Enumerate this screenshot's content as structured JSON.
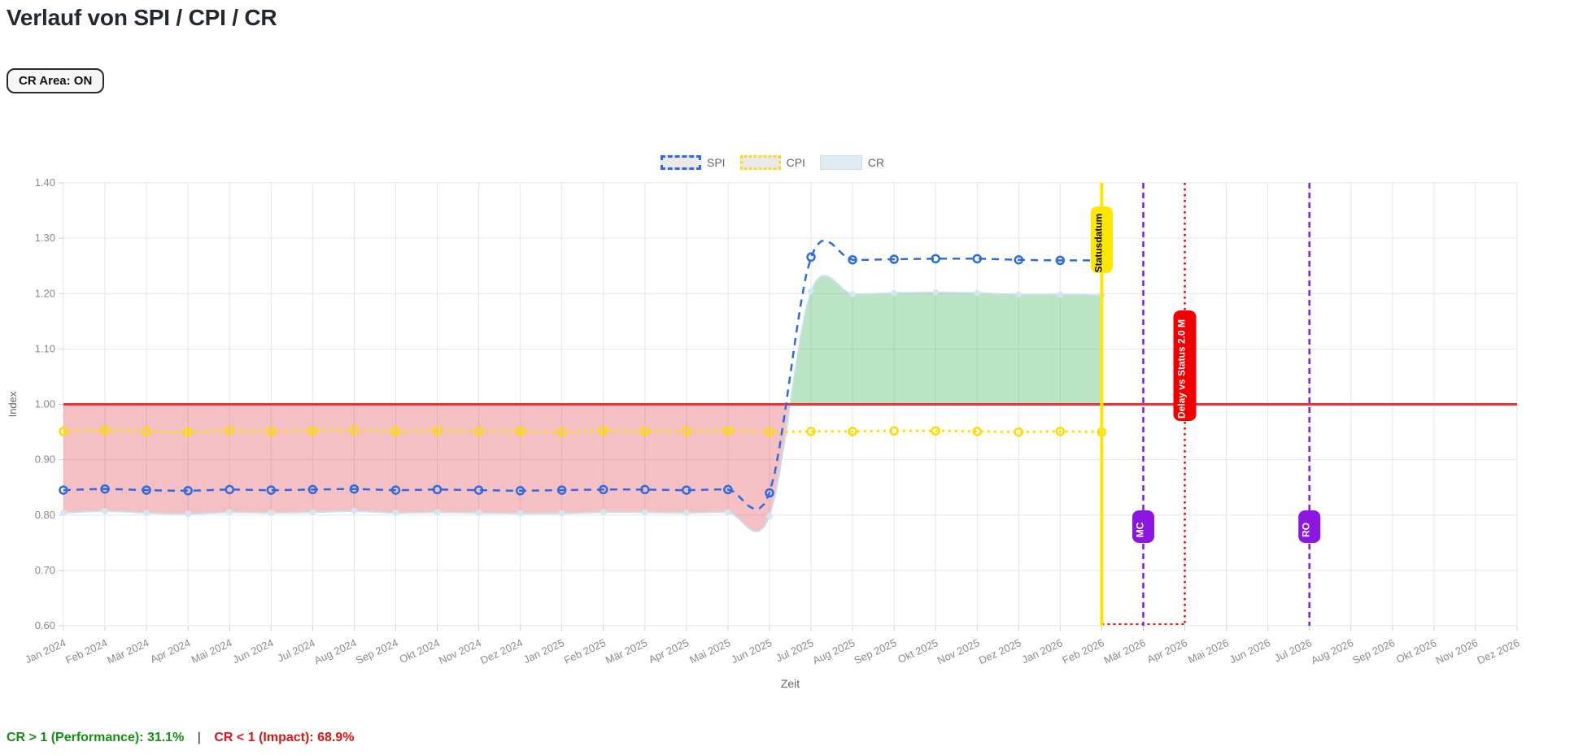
{
  "page": {
    "title": "Verlauf von SPI / CPI / CR",
    "cr_area_button": "CR Area: ON"
  },
  "legend": {
    "items": [
      {
        "label": "SPI"
      },
      {
        "label": "CPI"
      },
      {
        "label": "CR"
      }
    ]
  },
  "footer": {
    "performance": "CR > 1 (Performance): 31.1%",
    "separator": "|",
    "impact": "CR < 1 (Impact): 68.9%"
  },
  "chart_data": {
    "type": "line",
    "title": "Verlauf von SPI / CPI / CR",
    "xlabel": "Zeit",
    "ylabel": "Index",
    "ylim": [
      0.6,
      1.4
    ],
    "ytick_step": 0.1,
    "grid": true,
    "legend_position": "top",
    "x": [
      "Jan 2024",
      "Feb 2024",
      "Mär 2024",
      "Apr 2024",
      "Mai 2024",
      "Jun 2024",
      "Jul 2024",
      "Aug 2024",
      "Sep 2024",
      "Okt 2024",
      "Nov 2024",
      "Dez 2024",
      "Jan 2025",
      "Feb 2025",
      "Mär 2025",
      "Apr 2025",
      "Mai 2025",
      "Jun 2025",
      "Jul 2025",
      "Aug 2025",
      "Sep 2025",
      "Okt 2025",
      "Nov 2025",
      "Dez 2025",
      "Jan 2026",
      "Feb 2026",
      "Mär 2026",
      "Apr 2026",
      "Mai 2026",
      "Jun 2026",
      "Jul 2026",
      "Aug 2026",
      "Sep 2026",
      "Okt 2026",
      "Nov 2026",
      "Dez 2026"
    ],
    "series": [
      {
        "name": "SPI",
        "type": "line",
        "style": "dashed",
        "color": "#2f6be0",
        "values": [
          0.845,
          0.847,
          0.845,
          0.844,
          0.846,
          0.845,
          0.846,
          0.847,
          0.845,
          0.846,
          0.845,
          0.844,
          0.845,
          0.846,
          0.846,
          0.845,
          0.846,
          0.84,
          1.266,
          1.261,
          1.262,
          1.263,
          1.263,
          1.261,
          1.26,
          1.26
        ]
      },
      {
        "name": "CPI",
        "type": "line",
        "style": "dotted",
        "color": "#ffdb00",
        "values": [
          0.951,
          0.953,
          0.951,
          0.95,
          0.952,
          0.951,
          0.952,
          0.953,
          0.951,
          0.952,
          0.951,
          0.951,
          0.95,
          0.952,
          0.951,
          0.951,
          0.952,
          0.95,
          0.951,
          0.951,
          0.952,
          0.952,
          0.951,
          0.95,
          0.951,
          0.95
        ]
      },
      {
        "name": "CR",
        "type": "area",
        "color": "#c9dfec",
        "marker_color": "#d4e6f2",
        "area_negative_color": "rgba(222,64,76,0.33)",
        "area_positive_color": "rgba(74,185,101,0.38)",
        "area_baseline": 1.0,
        "values": [
          0.804,
          0.807,
          0.804,
          0.802,
          0.805,
          0.804,
          0.805,
          0.807,
          0.804,
          0.805,
          0.804,
          0.803,
          0.803,
          0.805,
          0.805,
          0.804,
          0.805,
          0.798,
          1.204,
          1.199,
          1.201,
          1.202,
          1.201,
          1.198,
          1.198,
          1.197
        ]
      }
    ],
    "baseline": {
      "value": 1.0,
      "color": "#e53535"
    },
    "markers": [
      {
        "name": "statusdatum",
        "label": "Statusdatum",
        "month": "Feb 2026",
        "line": "solid",
        "color": "#ffe600",
        "text_color": "#000000"
      },
      {
        "name": "mc",
        "label": "MC",
        "month": "Mär 2026",
        "line": "dashed",
        "color": "#8b17e0",
        "text_color": "#ffffff"
      },
      {
        "name": "delay",
        "label": "Delay vs Status 2.0 M",
        "month": "Apr 2026",
        "line": "dotted",
        "color": "#f00000",
        "text_color": "#ffffff"
      },
      {
        "name": "ro",
        "label": "RO",
        "month": "Jul 2026",
        "line": "dashed",
        "color": "#8b17e0",
        "text_color": "#ffffff"
      }
    ],
    "delay_connector": {
      "from_month": "Feb 2026",
      "to_month": "Apr 2026",
      "at_value": 0.6,
      "color": "#f00000"
    }
  }
}
